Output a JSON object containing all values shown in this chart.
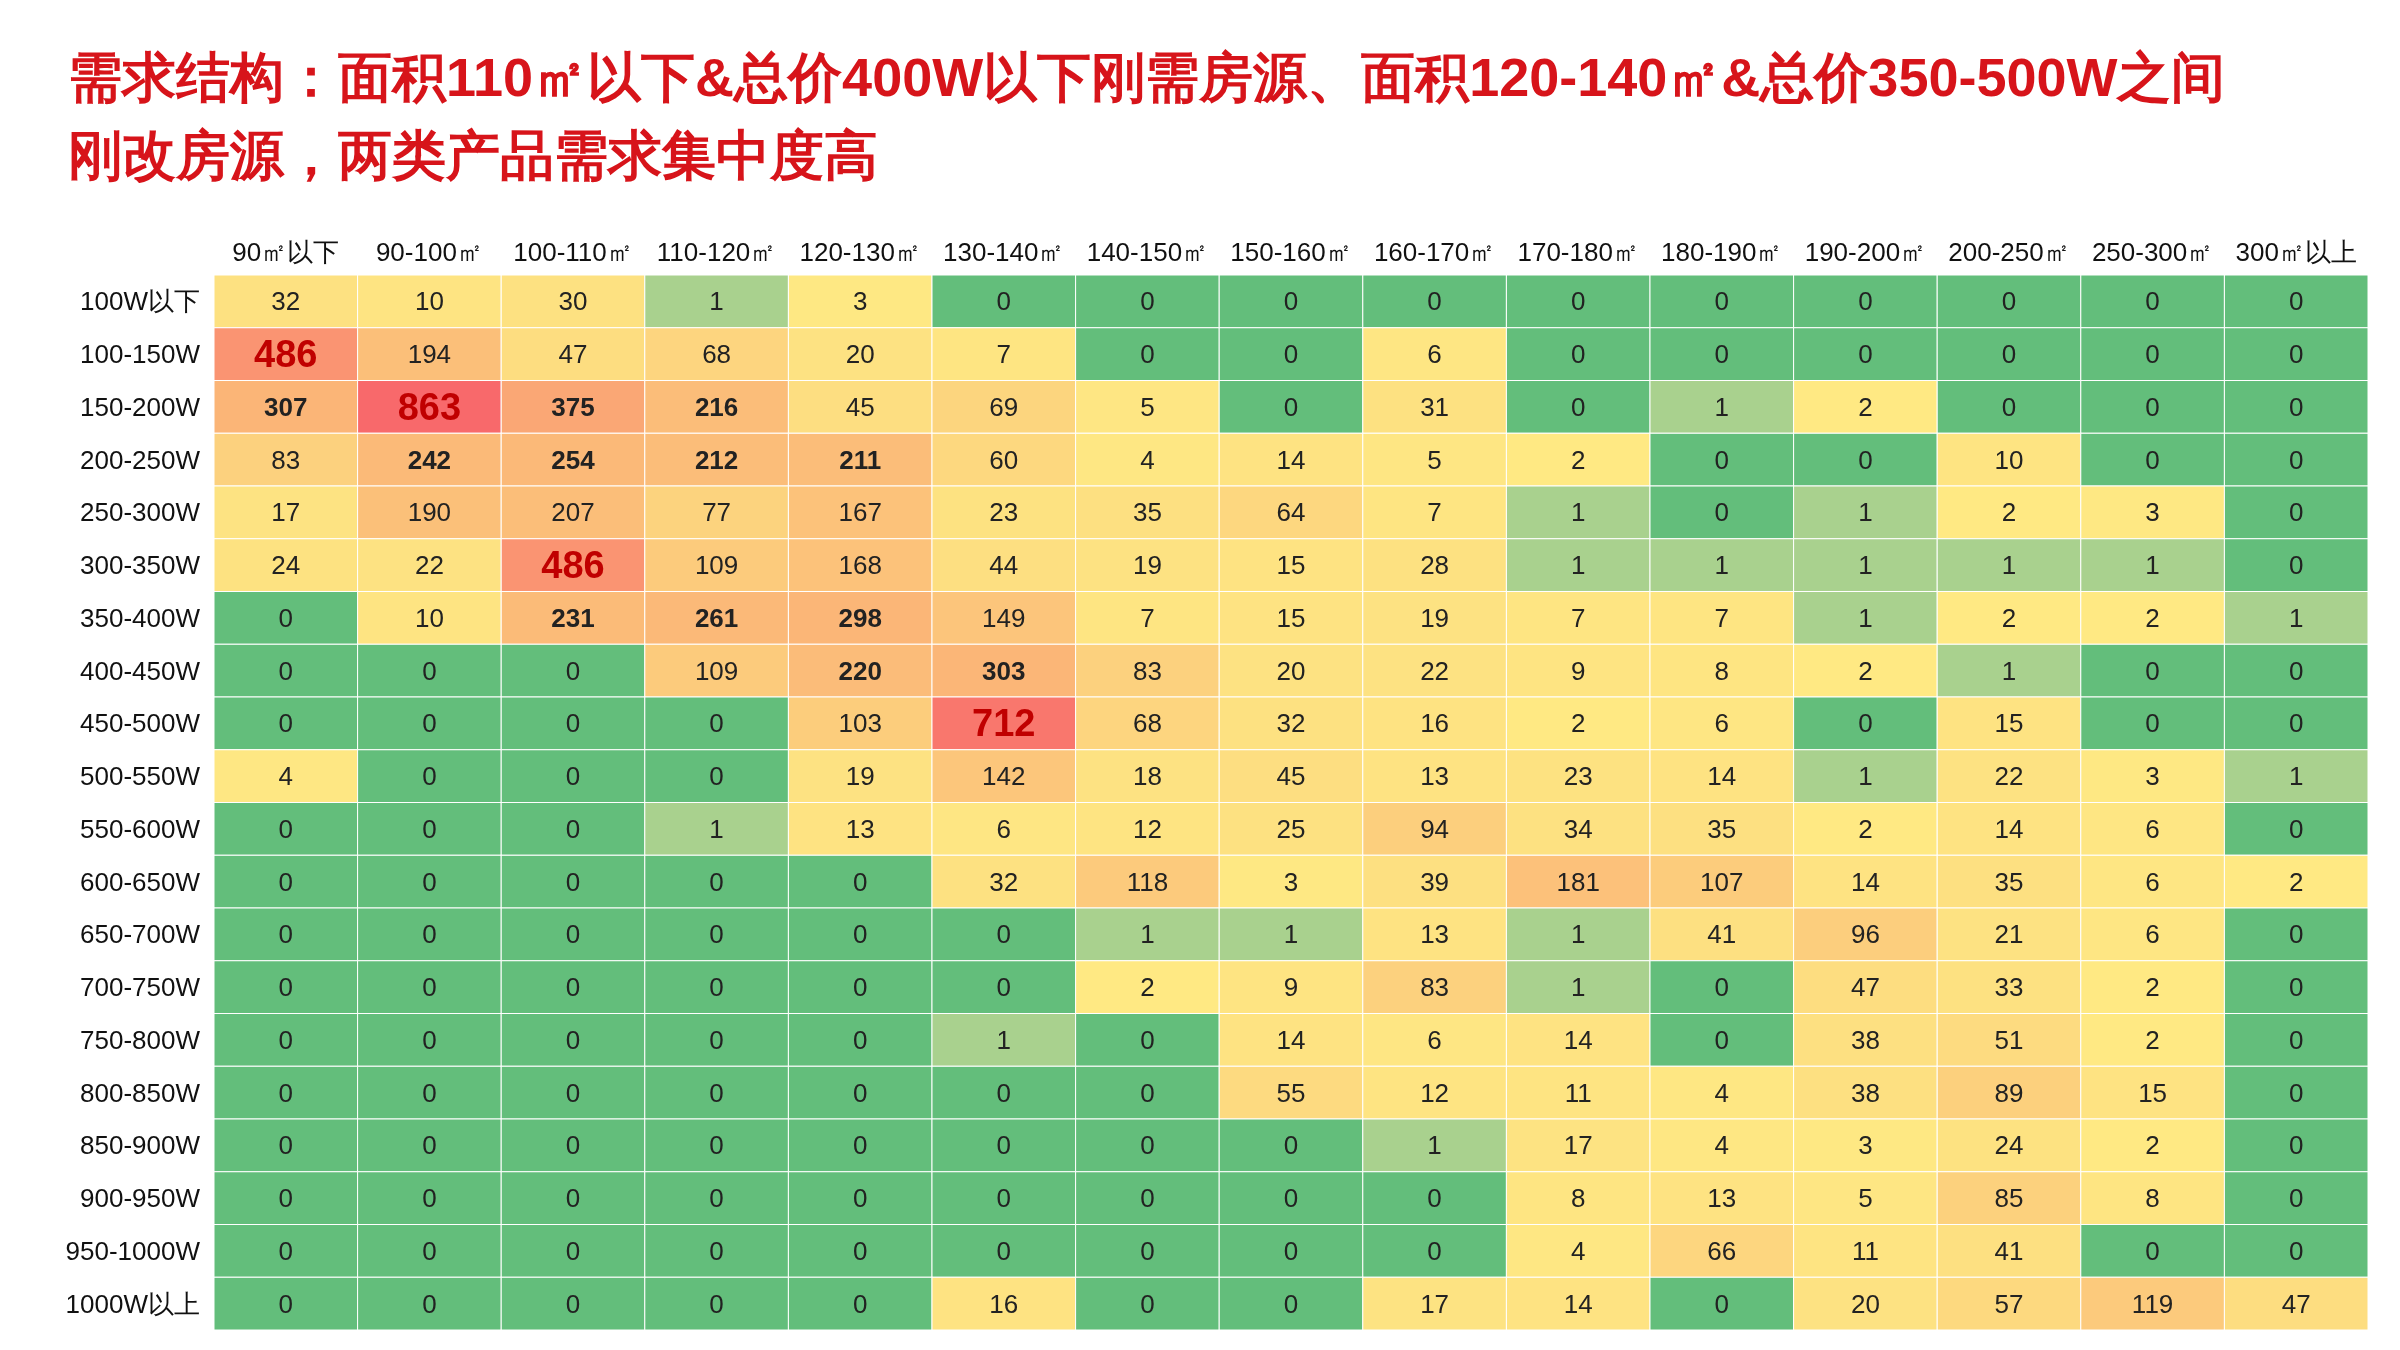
{
  "chart_data": {
    "type": "heatmap",
    "data_labels": true,
    "title": "需求结构：面积110㎡以下&总价400W以下刚需房源、面积120-140㎡&总价350-500W之间刚改房源，两类产品需求集中度高",
    "categories": [
      "90㎡以下",
      "90-100㎡",
      "100-110㎡",
      "110-120㎡",
      "120-130㎡",
      "130-140㎡",
      "140-150㎡",
      "150-160㎡",
      "160-170㎡",
      "170-180㎡",
      "180-190㎡",
      "190-200㎡",
      "200-250㎡",
      "250-300㎡",
      "300㎡以上"
    ],
    "y_categories": [
      "100W以下",
      "100-150W",
      "150-200W",
      "200-250W",
      "250-300W",
      "300-350W",
      "350-400W",
      "400-450W",
      "450-500W",
      "500-550W",
      "550-600W",
      "600-650W",
      "650-700W",
      "700-750W",
      "750-800W",
      "800-850W",
      "850-900W",
      "900-950W",
      "950-1000W",
      "1000W以上"
    ],
    "cells": [
      [
        32,
        10,
        30,
        1,
        3,
        0,
        0,
        0,
        0,
        0,
        0,
        0,
        0,
        0,
        0
      ],
      [
        486,
        194,
        47,
        68,
        20,
        7,
        0,
        0,
        6,
        0,
        0,
        0,
        0,
        0,
        0
      ],
      [
        307,
        863,
        375,
        216,
        45,
        69,
        5,
        0,
        31,
        0,
        1,
        2,
        0,
        0,
        0
      ],
      [
        83,
        242,
        254,
        212,
        211,
        60,
        4,
        14,
        5,
        2,
        0,
        0,
        10,
        0,
        0
      ],
      [
        17,
        190,
        207,
        77,
        167,
        23,
        35,
        64,
        7,
        1,
        0,
        1,
        2,
        3,
        0
      ],
      [
        24,
        22,
        486,
        109,
        168,
        44,
        19,
        15,
        28,
        1,
        1,
        1,
        1,
        1,
        0
      ],
      [
        0,
        10,
        231,
        261,
        298,
        149,
        7,
        15,
        19,
        7,
        7,
        1,
        2,
        2,
        1
      ],
      [
        0,
        0,
        0,
        109,
        220,
        303,
        83,
        20,
        22,
        9,
        8,
        2,
        1,
        0,
        0
      ],
      [
        0,
        0,
        0,
        0,
        103,
        712,
        68,
        32,
        16,
        2,
        6,
        0,
        15,
        0,
        0
      ],
      [
        4,
        0,
        0,
        0,
        19,
        142,
        18,
        45,
        13,
        23,
        14,
        1,
        22,
        3,
        1
      ],
      [
        0,
        0,
        0,
        1,
        13,
        6,
        12,
        25,
        94,
        34,
        35,
        2,
        14,
        6,
        0
      ],
      [
        0,
        0,
        0,
        0,
        0,
        32,
        118,
        3,
        39,
        181,
        107,
        14,
        35,
        6,
        2
      ],
      [
        0,
        0,
        0,
        0,
        0,
        0,
        1,
        1,
        13,
        1,
        41,
        96,
        21,
        6,
        0
      ],
      [
        0,
        0,
        0,
        0,
        0,
        0,
        2,
        9,
        83,
        1,
        0,
        47,
        33,
        2,
        0
      ],
      [
        0,
        0,
        0,
        0,
        0,
        1,
        0,
        14,
        6,
        14,
        0,
        38,
        51,
        2,
        0
      ],
      [
        0,
        0,
        0,
        0,
        0,
        0,
        0,
        55,
        12,
        11,
        4,
        38,
        89,
        15,
        0
      ],
      [
        0,
        0,
        0,
        0,
        0,
        0,
        0,
        0,
        1,
        17,
        4,
        3,
        24,
        2,
        0
      ],
      [
        0,
        0,
        0,
        0,
        0,
        0,
        0,
        0,
        0,
        8,
        13,
        5,
        85,
        8,
        0
      ],
      [
        0,
        0,
        0,
        0,
        0,
        0,
        0,
        0,
        0,
        4,
        66,
        11,
        41,
        0,
        0
      ],
      [
        0,
        0,
        0,
        0,
        0,
        16,
        0,
        0,
        17,
        14,
        0,
        20,
        57,
        119,
        47
      ]
    ]
  }
}
